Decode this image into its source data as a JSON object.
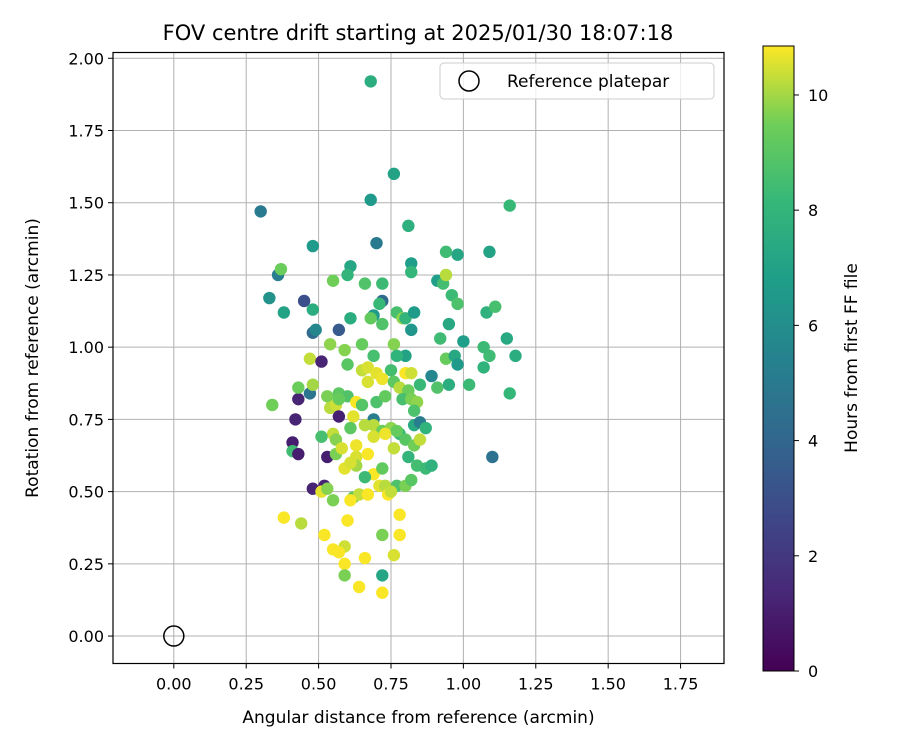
{
  "chart_data": {
    "type": "scatter",
    "title": "FOV centre drift starting at 2025/01/30 18:07:18",
    "xlabel": "Angular distance from reference (arcmin)",
    "ylabel": "Rotation from reference (arcmin)",
    "xlim": [
      -0.21,
      1.9
    ],
    "ylim": [
      -0.095,
      2.02
    ],
    "xticks": [
      0.0,
      0.25,
      0.5,
      0.75,
      1.0,
      1.25,
      1.5,
      1.75
    ],
    "xtick_labels": [
      "0.00",
      "0.25",
      "0.50",
      "0.75",
      "1.00",
      "1.25",
      "1.50",
      "1.75"
    ],
    "yticks": [
      0.0,
      0.25,
      0.5,
      0.75,
      1.0,
      1.25,
      1.5,
      1.75,
      2.0
    ],
    "ytick_labels": [
      "0.00",
      "0.25",
      "0.50",
      "0.75",
      "1.00",
      "1.25",
      "1.50",
      "1.75",
      "2.00"
    ],
    "grid": true,
    "legend": {
      "position": "top-right",
      "entries": [
        "Reference platepar"
      ]
    },
    "reference_point": {
      "x": 0.0,
      "y": 0.0,
      "marker": "open-circle"
    },
    "colorbar": {
      "label": "Hours from first FF file",
      "min": 0,
      "max": 10.85,
      "ticks": [
        0,
        2,
        4,
        6,
        8,
        10
      ],
      "tick_labels": [
        "0",
        "2",
        "4",
        "6",
        "8",
        "10"
      ],
      "colormap": "viridis"
    },
    "points": [
      [
        0.68,
        1.92,
        7.6
      ],
      [
        0.76,
        1.6,
        7.0
      ],
      [
        0.68,
        1.51,
        6.6
      ],
      [
        0.3,
        1.47,
        5.0
      ],
      [
        1.16,
        1.49,
        8.2
      ],
      [
        0.81,
        1.42,
        7.7
      ],
      [
        0.48,
        1.35,
        6.6
      ],
      [
        0.7,
        1.36,
        5.0
      ],
      [
        0.94,
        1.33,
        8.4
      ],
      [
        0.98,
        1.32,
        7.2
      ],
      [
        1.09,
        1.33,
        7.0
      ],
      [
        0.82,
        1.29,
        6.8
      ],
      [
        0.36,
        1.25,
        5.2
      ],
      [
        0.37,
        1.27,
        9.4
      ],
      [
        0.61,
        1.28,
        7.2
      ],
      [
        0.6,
        1.25,
        8.0
      ],
      [
        0.55,
        1.23,
        9.5
      ],
      [
        0.82,
        1.26,
        8.1
      ],
      [
        0.66,
        1.22,
        8.8
      ],
      [
        0.72,
        1.22,
        8.3
      ],
      [
        0.91,
        1.23,
        6.8
      ],
      [
        0.93,
        1.22,
        8.5
      ],
      [
        0.94,
        1.25,
        10.2
      ],
      [
        0.33,
        1.17,
        6.2
      ],
      [
        0.45,
        1.16,
        3.0
      ],
      [
        0.72,
        1.16,
        4.2
      ],
      [
        0.71,
        1.15,
        8.2
      ],
      [
        0.38,
        1.12,
        7.0
      ],
      [
        0.48,
        1.13,
        7.6
      ],
      [
        0.61,
        1.1,
        7.6
      ],
      [
        0.69,
        1.11,
        6.6
      ],
      [
        0.68,
        1.1,
        9.2
      ],
      [
        0.72,
        1.08,
        8.8
      ],
      [
        0.77,
        1.12,
        8.6
      ],
      [
        0.79,
        1.1,
        9.8
      ],
      [
        0.8,
        1.1,
        8.0
      ],
      [
        0.83,
        1.12,
        6.7
      ],
      [
        0.96,
        1.18,
        8.3
      ],
      [
        0.98,
        1.15,
        8.7
      ],
      [
        1.08,
        1.12,
        7.8
      ],
      [
        1.11,
        1.14,
        8.6
      ],
      [
        0.48,
        1.05,
        4.2
      ],
      [
        0.49,
        1.06,
        5.6
      ],
      [
        0.57,
        1.06,
        3.5
      ],
      [
        0.82,
        1.06,
        6.4
      ],
      [
        0.95,
        1.08,
        7.3
      ],
      [
        0.92,
        1.03,
        8.4
      ],
      [
        1.0,
        1.02,
        6.8
      ],
      [
        1.07,
        1.0,
        8.3
      ],
      [
        1.15,
        1.03,
        7.4
      ],
      [
        1.18,
        0.97,
        7.6
      ],
      [
        0.54,
        1.01,
        9.8
      ],
      [
        0.59,
        0.99,
        9.7
      ],
      [
        0.65,
        1.01,
        9.3
      ],
      [
        0.69,
        0.97,
        8.6
      ],
      [
        0.76,
        1.01,
        9.7
      ],
      [
        0.8,
        0.97,
        7.0
      ],
      [
        0.77,
        0.97,
        7.9
      ],
      [
        0.94,
        0.96,
        9.3
      ],
      [
        0.97,
        0.97,
        7.3
      ],
      [
        1.09,
        0.97,
        8.4
      ],
      [
        0.98,
        0.94,
        6.6
      ],
      [
        1.07,
        0.93,
        7.9
      ],
      [
        0.47,
        0.96,
        10.3
      ],
      [
        0.51,
        0.95,
        1.2
      ],
      [
        0.6,
        0.94,
        9.0
      ],
      [
        0.65,
        0.92,
        10.3
      ],
      [
        0.67,
        0.93,
        10.5
      ],
      [
        0.7,
        0.91,
        10.6
      ],
      [
        0.75,
        0.92,
        8.5
      ],
      [
        0.8,
        0.91,
        10.8
      ],
      [
        0.82,
        0.91,
        10.4
      ],
      [
        0.89,
        0.9,
        5.6
      ],
      [
        0.67,
        0.88,
        10.5
      ],
      [
        0.72,
        0.89,
        10.7
      ],
      [
        0.76,
        0.88,
        9.1
      ],
      [
        0.78,
        0.86,
        10.2
      ],
      [
        0.81,
        0.85,
        9.4
      ],
      [
        0.85,
        0.87,
        8.2
      ],
      [
        0.91,
        0.86,
        8.8
      ],
      [
        0.95,
        0.87,
        7.6
      ],
      [
        1.02,
        0.87,
        8.3
      ],
      [
        1.16,
        0.84,
        8.1
      ],
      [
        0.43,
        0.82,
        1.2
      ],
      [
        0.43,
        0.86,
        9.4
      ],
      [
        0.47,
        0.84,
        4.8
      ],
      [
        0.48,
        0.87,
        10.0
      ],
      [
        0.53,
        0.83,
        9.6
      ],
      [
        0.57,
        0.84,
        9.1
      ],
      [
        0.6,
        0.83,
        8.8
      ],
      [
        0.34,
        0.8,
        9.5
      ],
      [
        0.54,
        0.79,
        10.2
      ],
      [
        0.56,
        0.8,
        10.4
      ],
      [
        0.57,
        0.82,
        9.3
      ],
      [
        0.63,
        0.81,
        10.8
      ],
      [
        0.65,
        0.8,
        8.9
      ],
      [
        0.7,
        0.81,
        8.7
      ],
      [
        0.73,
        0.83,
        9.2
      ],
      [
        0.79,
        0.82,
        8.6
      ],
      [
        0.82,
        0.82,
        9.6
      ],
      [
        0.84,
        0.81,
        9.8
      ],
      [
        0.83,
        0.78,
        8.7
      ],
      [
        0.42,
        0.75,
        1.2
      ],
      [
        0.57,
        0.76,
        1.1
      ],
      [
        0.62,
        0.76,
        10.6
      ],
      [
        0.69,
        0.75,
        5.2
      ],
      [
        0.69,
        0.73,
        10.2
      ],
      [
        0.72,
        0.71,
        9.4
      ],
      [
        0.75,
        0.72,
        9.8
      ],
      [
        0.78,
        0.7,
        8.2
      ],
      [
        0.83,
        0.73,
        7.4
      ],
      [
        0.85,
        0.74,
        5.2
      ],
      [
        0.87,
        0.72,
        7.9
      ],
      [
        0.41,
        0.67,
        1.0
      ],
      [
        0.55,
        0.7,
        10.3
      ],
      [
        0.56,
        0.68,
        9.7
      ],
      [
        0.51,
        0.69,
        8.6
      ],
      [
        0.61,
        0.72,
        9.1
      ],
      [
        0.66,
        0.73,
        10.2
      ],
      [
        0.69,
        0.69,
        10.5
      ],
      [
        0.73,
        0.7,
        10.7
      ],
      [
        0.77,
        0.71,
        9.3
      ],
      [
        0.8,
        0.68,
        9.0
      ],
      [
        0.83,
        0.66,
        9.5
      ],
      [
        0.85,
        0.68,
        10.3
      ],
      [
        0.41,
        0.64,
        8.4
      ],
      [
        0.43,
        0.63,
        1.0
      ],
      [
        0.53,
        0.62,
        1.0
      ],
      [
        0.56,
        0.63,
        9.6
      ],
      [
        0.58,
        0.65,
        10.5
      ],
      [
        0.63,
        0.66,
        10.7
      ],
      [
        0.63,
        0.62,
        10.5
      ],
      [
        0.67,
        0.63,
        10.8
      ],
      [
        0.76,
        0.65,
        10.3
      ],
      [
        0.81,
        0.62,
        8.0
      ],
      [
        0.63,
        0.59,
        10.0
      ],
      [
        0.59,
        0.58,
        10.6
      ],
      [
        0.61,
        0.6,
        10.5
      ],
      [
        0.69,
        0.56,
        10.8
      ],
      [
        0.72,
        0.58,
        9.2
      ],
      [
        0.84,
        0.59,
        8.5
      ],
      [
        0.87,
        0.58,
        8.3
      ],
      [
        0.89,
        0.59,
        7.8
      ],
      [
        1.1,
        0.62,
        4.6
      ],
      [
        0.48,
        0.51,
        1.2
      ],
      [
        0.52,
        0.52,
        1.2
      ],
      [
        0.51,
        0.5,
        10.6
      ],
      [
        0.53,
        0.51,
        9.7
      ],
      [
        0.62,
        0.48,
        9.2
      ],
      [
        0.64,
        0.49,
        10.3
      ],
      [
        0.66,
        0.55,
        8.3
      ],
      [
        0.67,
        0.49,
        10.8
      ],
      [
        0.71,
        0.52,
        10.6
      ],
      [
        0.73,
        0.52,
        10.2
      ],
      [
        0.74,
        0.49,
        10.8
      ],
      [
        0.77,
        0.52,
        8.7
      ],
      [
        0.8,
        0.52,
        9.6
      ],
      [
        0.82,
        0.54,
        9.0
      ],
      [
        0.75,
        0.5,
        10.3
      ],
      [
        0.61,
        0.47,
        10.8
      ],
      [
        0.55,
        0.47,
        9.6
      ],
      [
        0.38,
        0.41,
        10.8
      ],
      [
        0.44,
        0.39,
        10.2
      ],
      [
        0.6,
        0.4,
        10.8
      ],
      [
        0.78,
        0.42,
        10.8
      ],
      [
        0.52,
        0.35,
        10.8
      ],
      [
        0.72,
        0.35,
        9.6
      ],
      [
        0.78,
        0.35,
        10.8
      ],
      [
        0.55,
        0.3,
        10.8
      ],
      [
        0.59,
        0.31,
        10.4
      ],
      [
        0.57,
        0.29,
        10.8
      ],
      [
        0.66,
        0.27,
        10.8
      ],
      [
        0.76,
        0.28,
        10.5
      ],
      [
        0.59,
        0.25,
        10.8
      ],
      [
        0.59,
        0.21,
        9.6
      ],
      [
        0.72,
        0.21,
        7.2
      ],
      [
        0.64,
        0.17,
        10.8
      ],
      [
        0.72,
        0.15,
        10.8
      ]
    ]
  }
}
